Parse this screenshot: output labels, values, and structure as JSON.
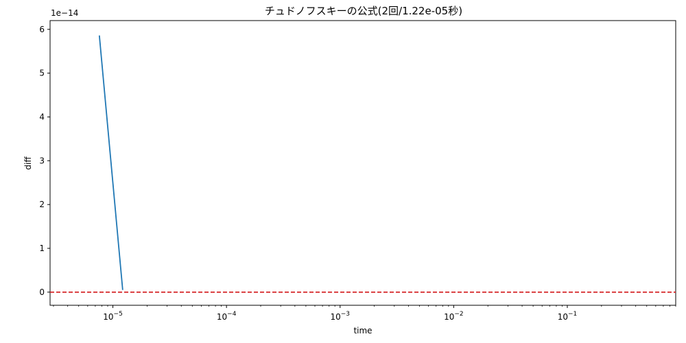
{
  "chart_data": {
    "type": "line",
    "title": "チュドノフスキーの公式(2回/1.22e-05秒)",
    "xlabel": "time",
    "ylabel": "diff",
    "x_scale": "log",
    "xlim": [
      2.8e-06,
      0.9
    ],
    "ylim": [
      -0.3,
      6.2
    ],
    "y_multiplier_label": "1e−14",
    "x_ticks": [
      {
        "value": 1e-05,
        "base": "10",
        "exp": "−5"
      },
      {
        "value": 0.0001,
        "base": "10",
        "exp": "−4"
      },
      {
        "value": 0.001,
        "base": "10",
        "exp": "−3"
      },
      {
        "value": 0.01,
        "base": "10",
        "exp": "−2"
      },
      {
        "value": 0.1,
        "base": "10",
        "exp": "−1"
      }
    ],
    "y_ticks": [
      {
        "value": 0,
        "label": "0"
      },
      {
        "value": 1,
        "label": "1"
      },
      {
        "value": 2,
        "label": "2"
      },
      {
        "value": 3,
        "label": "3"
      },
      {
        "value": 4,
        "label": "4"
      },
      {
        "value": 5,
        "label": "5"
      },
      {
        "value": 6,
        "label": "6"
      }
    ],
    "series": [
      {
        "color": "#1f77b4",
        "points": [
          {
            "x": 7.6e-06,
            "y": 5.86
          },
          {
            "x": 1.22e-05,
            "y": 0.05
          }
        ]
      }
    ],
    "reference_line": {
      "y": 0,
      "color": "#d62728",
      "style": "dashed"
    },
    "grid": false
  }
}
